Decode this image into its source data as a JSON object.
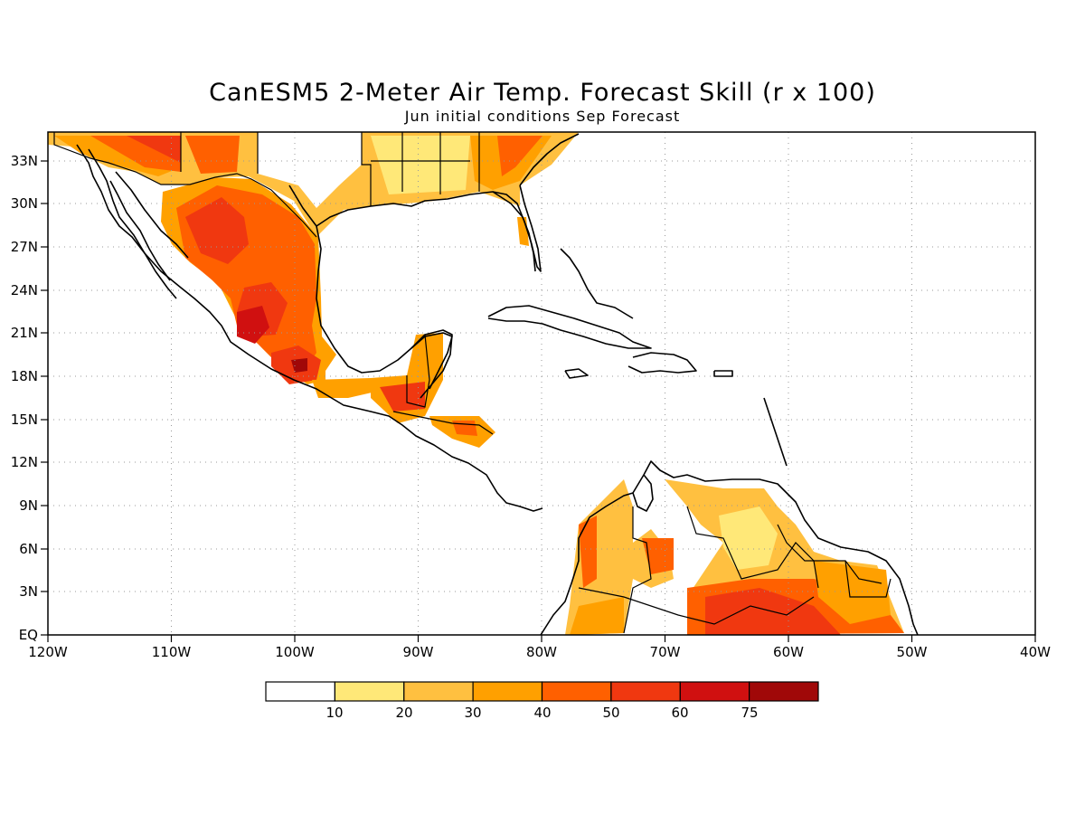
{
  "title": "CanESM5 2-Meter Air Temp. Forecast Skill (r x 100)",
  "subtitle": "Jun initial conditions  Sep Forecast",
  "axes": {
    "lon_ticks": [
      "120W",
      "110W",
      "100W",
      "90W",
      "80W",
      "70W",
      "60W",
      "50W",
      "40W"
    ],
    "lat_ticks": [
      "EQ",
      "3N",
      "6N",
      "9N",
      "12N",
      "15N",
      "18N",
      "21N",
      "24N",
      "27N",
      "30N",
      "33N"
    ]
  },
  "legend": {
    "labels": [
      "10",
      "20",
      "30",
      "40",
      "50",
      "60",
      "75"
    ],
    "colors": [
      "#ffffff",
      "#ffe878",
      "#ffc040",
      "#ffa000",
      "#ff6000",
      "#f03810",
      "#d01010",
      "#a00808"
    ]
  },
  "chart_data": {
    "type": "heatmap",
    "title": "CanESM5 2-Meter Air Temp. Forecast Skill (r x 100)",
    "subtitle": "Jun initial conditions  Sep Forecast",
    "x_range": [
      -120,
      -40
    ],
    "y_range": [
      0,
      35
    ],
    "levels": [
      10,
      20,
      30,
      40,
      50,
      60,
      75
    ],
    "grid": true,
    "legend_placement": "bottom"
  }
}
